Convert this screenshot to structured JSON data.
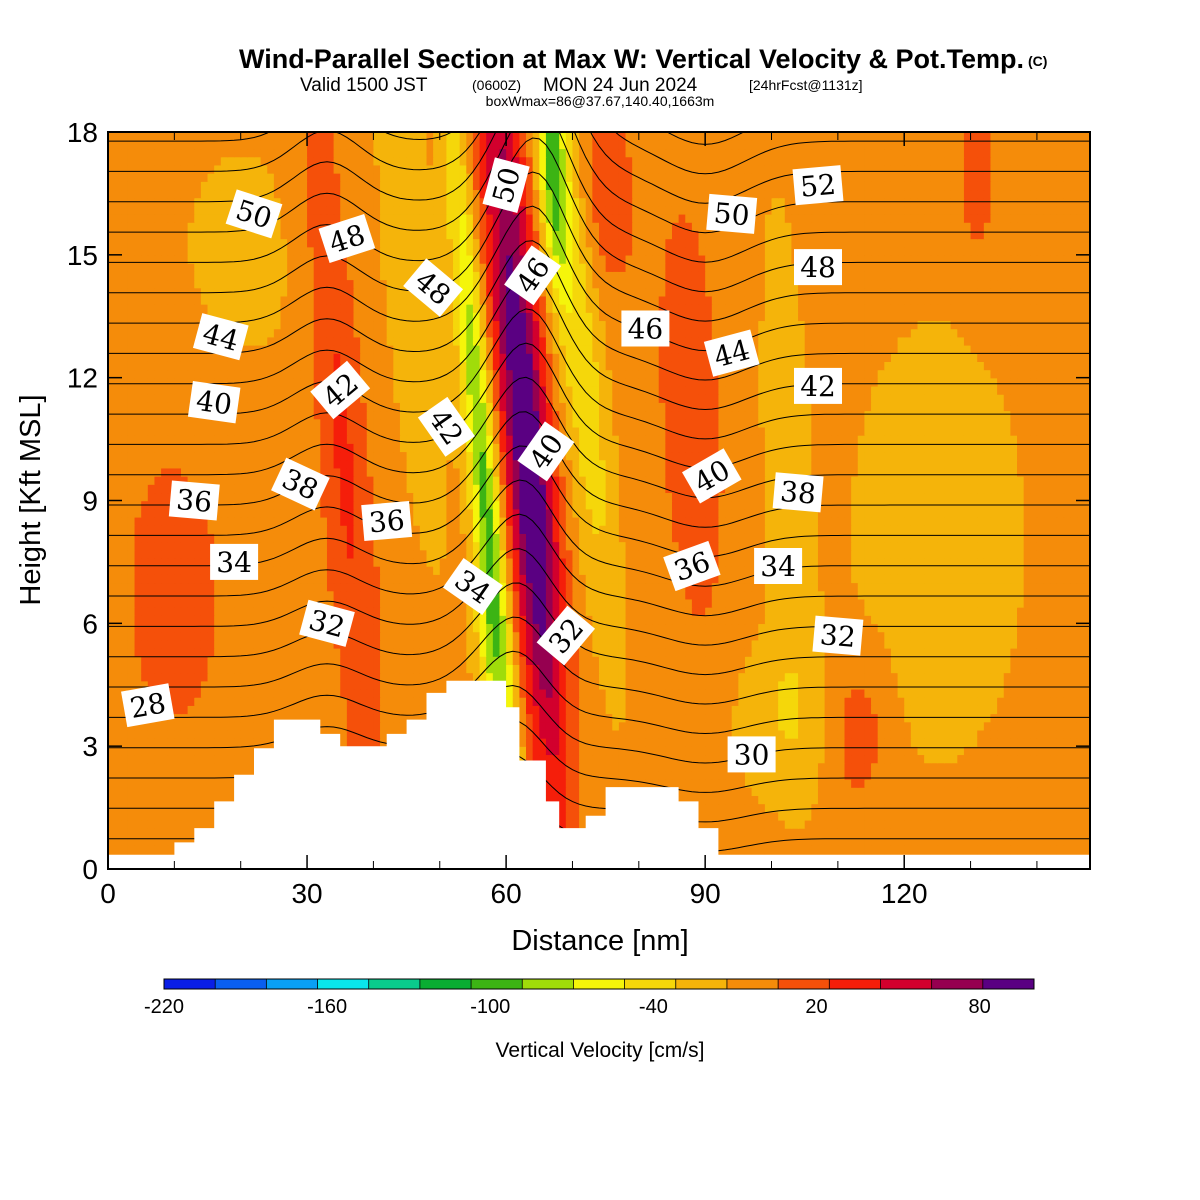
{
  "title": {
    "main": "Wind-Parallel Section at Max W: Vertical Velocity & Pot.Temp.",
    "copyright": "(C)",
    "valid_prefix": "Valid 1500 JST",
    "valid_utc": "(0600Z)",
    "valid_date": "MON 24 Jun 2024",
    "forecast": "[24hrFcst@1131z]",
    "box_info": "boxWmax=86@37.67,140.40,1663m"
  },
  "chart_data": {
    "type": "heatmap",
    "xlabel": "Distance [nm]",
    "ylabel": "Height [Kft MSL]",
    "xlim": [
      0,
      148
    ],
    "ylim": [
      0,
      18
    ],
    "x_ticks": [
      0,
      30,
      60,
      90,
      120
    ],
    "x_tick_labels": [
      "0",
      "30",
      "60",
      "90",
      "120"
    ],
    "y_ticks": [
      0,
      3,
      6,
      9,
      12,
      15,
      18
    ],
    "y_tick_labels": [
      "0",
      "3",
      "6",
      "9",
      "12",
      "15",
      "18"
    ],
    "colorbar": {
      "label": "Vertical Velocity [cm/s]",
      "min": -220,
      "max": 100,
      "step": 20,
      "tick_values": [
        -220,
        -160,
        -100,
        -40,
        20,
        80
      ],
      "tick_labels": [
        "-220",
        "-160",
        "-100",
        "-40",
        "20",
        "80"
      ],
      "colors": [
        "#0a1ee6",
        "#0a5ff0",
        "#0aa0f5",
        "#0ae6eb",
        "#0acb8c",
        "#0aad32",
        "#3cb414",
        "#a0dc0a",
        "#f5f50a",
        "#f5d70a",
        "#f5b40a",
        "#f58c0a",
        "#f5500a",
        "#f51e0a",
        "#d2002d",
        "#960050",
        "#5a0082"
      ]
    },
    "terrain": {
      "x": [
        0,
        10,
        10,
        13,
        13,
        16,
        16,
        19,
        19,
        22,
        22,
        25,
        25,
        28,
        28,
        32,
        32,
        35,
        35,
        38,
        38,
        42,
        42,
        45,
        45,
        48,
        48,
        51,
        51,
        54,
        54,
        57,
        57,
        60,
        60,
        62,
        62,
        66,
        66,
        68,
        68,
        72,
        72,
        75,
        75,
        78,
        78,
        82,
        82,
        86,
        86,
        89,
        89,
        92,
        92,
        94,
        94,
        148
      ],
      "y": [
        0.35,
        0.35,
        0.65,
        0.65,
        1.0,
        1.0,
        1.65,
        1.65,
        2.3,
        2.3,
        2.95,
        2.95,
        3.65,
        3.65,
        3.65,
        3.65,
        3.3,
        3.3,
        3.0,
        3.0,
        3.0,
        3.0,
        3.3,
        3.3,
        3.65,
        3.65,
        4.3,
        4.3,
        4.6,
        4.6,
        4.6,
        4.6,
        4.6,
        4.6,
        3.95,
        3.95,
        2.65,
        2.65,
        1.65,
        1.65,
        1.0,
        1.0,
        1.3,
        1.3,
        2.0,
        2.0,
        2.0,
        2.0,
        2.0,
        2.0,
        1.65,
        1.65,
        1.0,
        1.0,
        0.35,
        0.35,
        0.35,
        0.35
      ]
    },
    "velocity_features": [
      {
        "x": 62,
        "y": 12,
        "sx": 2.6,
        "sy": 7.0,
        "slope": -0.5,
        "amp": 95
      },
      {
        "x": 65,
        "y": 8,
        "sx": 2.2,
        "sy": 3.5,
        "slope": -0.45,
        "amp": 35
      },
      {
        "x": 57,
        "y": 9,
        "sx": 1.6,
        "sy": 6.5,
        "slope": -0.55,
        "amp": -95
      },
      {
        "x": 57,
        "y": 5,
        "sx": 1.5,
        "sy": 2.0,
        "slope": -0.2,
        "amp": -30
      },
      {
        "x": 67,
        "y": 17,
        "sx": 1.5,
        "sy": 2.0,
        "slope": -0.3,
        "amp": -80
      },
      {
        "x": 71,
        "y": 13,
        "sx": 2.4,
        "sy": 5.5,
        "slope": -0.6,
        "amp": -45
      },
      {
        "x": 35,
        "y": 11,
        "sx": 2.5,
        "sy": 6.5,
        "slope": -0.5,
        "amp": 35
      },
      {
        "x": 46,
        "y": 14,
        "sx": 3.0,
        "sy": 5.0,
        "slope": -0.5,
        "amp": -25
      },
      {
        "x": 88,
        "y": 11,
        "sx": 3.5,
        "sy": 4.0,
        "slope": -0.3,
        "amp": 22
      },
      {
        "x": 75,
        "y": 16.5,
        "sx": 3.0,
        "sy": 1.6,
        "slope": -0.3,
        "amp": 25
      },
      {
        "x": 102,
        "y": 10,
        "sx": 2.5,
        "sy": 5.0,
        "slope": -0.2,
        "amp": -22
      },
      {
        "x": 101,
        "y": 3.6,
        "sx": 6.0,
        "sy": 1.5,
        "slope": 0.0,
        "amp": -22
      },
      {
        "x": 113,
        "y": 3.3,
        "sx": 3.0,
        "sy": 1.3,
        "slope": 0.1,
        "amp": 30
      },
      {
        "x": 131,
        "y": 17,
        "sx": 2.0,
        "sy": 1.6,
        "slope": 0.0,
        "amp": 25
      },
      {
        "x": 10,
        "y": 7,
        "sx": 6.0,
        "sy": 3.0,
        "slope": 0.0,
        "amp": 18
      },
      {
        "x": 125,
        "y": 8,
        "sx": 12.0,
        "sy": 5.0,
        "slope": 0.0,
        "amp": -18
      },
      {
        "x": 20,
        "y": 15,
        "sx": 10.0,
        "sy": 3.0,
        "slope": 0.0,
        "amp": -14
      }
    ],
    "pot_temp_contours": {
      "min": 26,
      "max": 56,
      "step": 1,
      "labels": [
        {
          "value": "50",
          "x": 22,
          "y": 16.0,
          "angle": 18
        },
        {
          "value": "48",
          "x": 36,
          "y": 15.4,
          "angle": -18
        },
        {
          "value": "44",
          "x": 17,
          "y": 13.0,
          "angle": 15
        },
        {
          "value": "40",
          "x": 16,
          "y": 11.4,
          "angle": 8
        },
        {
          "value": "36",
          "x": 13,
          "y": 9.0,
          "angle": 5
        },
        {
          "value": "34",
          "x": 19,
          "y": 7.5,
          "angle": 0
        },
        {
          "value": "28",
          "x": 6,
          "y": 4.0,
          "angle": -10
        },
        {
          "value": "42",
          "x": 35,
          "y": 11.7,
          "angle": -40
        },
        {
          "value": "38",
          "x": 29,
          "y": 9.4,
          "angle": 25
        },
        {
          "value": "36",
          "x": 42,
          "y": 8.5,
          "angle": -5
        },
        {
          "value": "32",
          "x": 33,
          "y": 6.0,
          "angle": 15
        },
        {
          "value": "48",
          "x": 49,
          "y": 14.2,
          "angle": 40
        },
        {
          "value": "42",
          "x": 51,
          "y": 10.8,
          "angle": 55
        },
        {
          "value": "34",
          "x": 55,
          "y": 6.9,
          "angle": 35
        },
        {
          "value": "50",
          "x": 60,
          "y": 16.7,
          "angle": -75
        },
        {
          "value": "46",
          "x": 64,
          "y": 14.5,
          "angle": -55
        },
        {
          "value": "40",
          "x": 66,
          "y": 10.2,
          "angle": -55
        },
        {
          "value": "32",
          "x": 69,
          "y": 5.7,
          "angle": -50
        },
        {
          "value": "46",
          "x": 81,
          "y": 13.2,
          "angle": 0
        },
        {
          "value": "50",
          "x": 94,
          "y": 16.0,
          "angle": 5
        },
        {
          "value": "44",
          "x": 94,
          "y": 12.6,
          "angle": -15
        },
        {
          "value": "40",
          "x": 91,
          "y": 9.6,
          "angle": -30
        },
        {
          "value": "36",
          "x": 88,
          "y": 7.4,
          "angle": -20
        },
        {
          "value": "30",
          "x": 97,
          "y": 2.8,
          "angle": 0
        },
        {
          "value": "52",
          "x": 107,
          "y": 16.7,
          "angle": -5
        },
        {
          "value": "48",
          "x": 107,
          "y": 14.7,
          "angle": 0
        },
        {
          "value": "42",
          "x": 107,
          "y": 11.8,
          "angle": 0
        },
        {
          "value": "38",
          "x": 104,
          "y": 9.2,
          "angle": 5
        },
        {
          "value": "34",
          "x": 101,
          "y": 7.4,
          "angle": 0
        },
        {
          "value": "32",
          "x": 110,
          "y": 5.7,
          "angle": 5
        }
      ]
    }
  }
}
